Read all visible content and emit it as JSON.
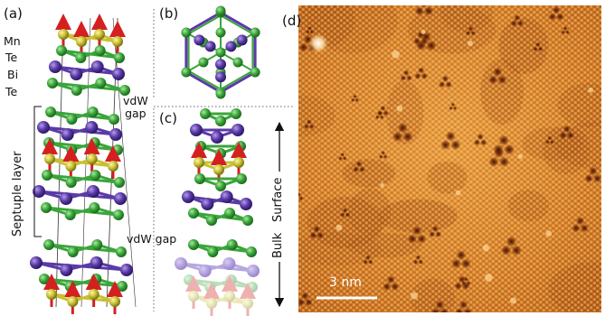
{
  "panels": {
    "a": "(a)",
    "b": "(b)",
    "c": "(c)",
    "d": "(d)"
  },
  "atoms": {
    "mn": "Mn",
    "te_top": "Te",
    "bi": "Bi",
    "te_bottom": "Te"
  },
  "labels": {
    "vdw_gap_upper": "vdW\ngap",
    "septuple_layer": "Septuple layer",
    "vdw_gap_lower": "vdW gap",
    "surface": "Surface",
    "bulk": "Bulk",
    "scale_bar": "3 nm"
  },
  "colors": {
    "mn": "#c8c032",
    "te": "#3aa53a",
    "bi": "#5a3aa6",
    "spin_arrow": "#d42020",
    "stm_base": "#c86a18"
  }
}
